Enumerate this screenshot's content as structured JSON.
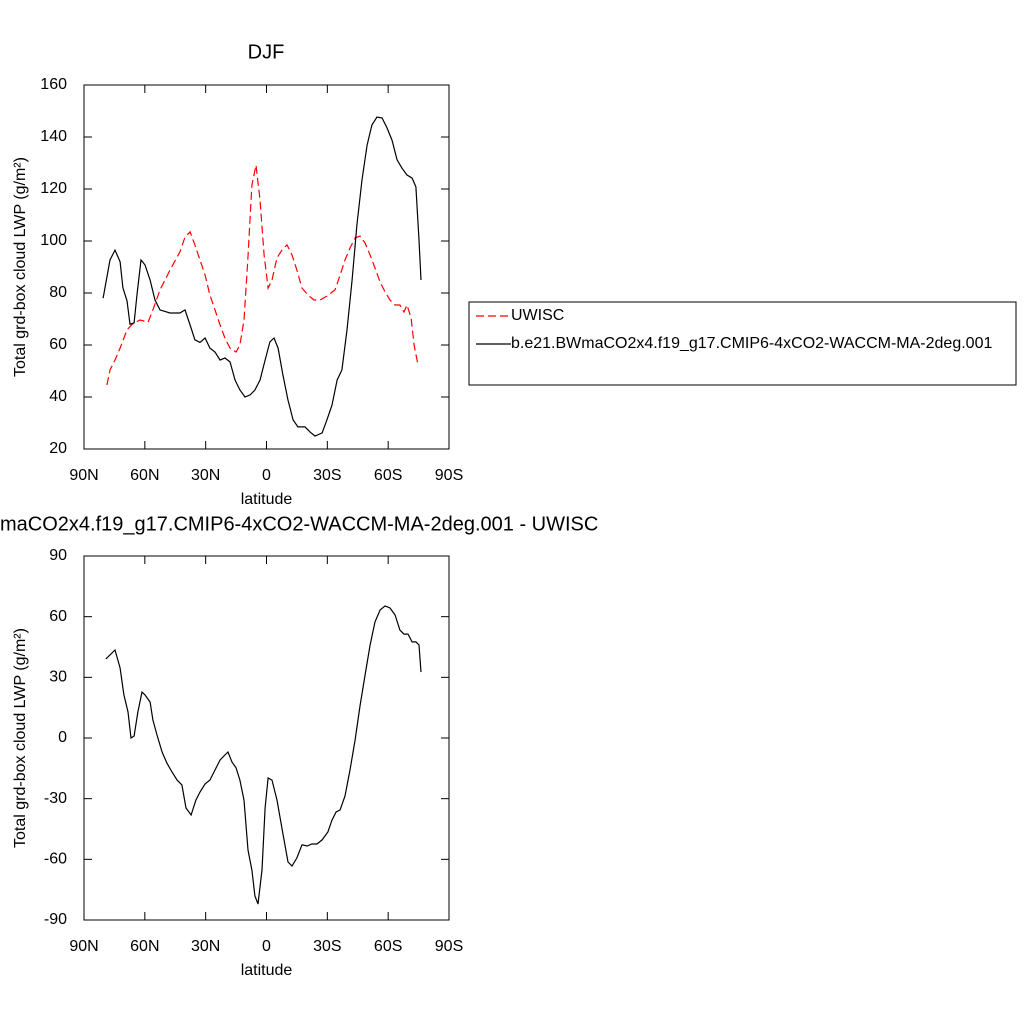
{
  "chart_data": [
    {
      "type": "line",
      "title": "DJF",
      "xlabel": "latitude",
      "ylabel": "Total grd-box cloud LWP (g/m²)",
      "xlim": [
        90,
        -90
      ],
      "xticks": [
        {
          "value": 90,
          "label": "90N"
        },
        {
          "value": 60,
          "label": "60N"
        },
        {
          "value": 30,
          "label": "30N"
        },
        0,
        {
          "value": -30,
          "label": "30S"
        },
        {
          "value": -60,
          "label": "60S"
        },
        {
          "value": -90,
          "label": "90S"
        }
      ],
      "ylim": [
        20,
        160
      ],
      "yticks": [
        20,
        40,
        60,
        80,
        100,
        120,
        140,
        160
      ],
      "legend": "right",
      "series": [
        {
          "name": "UWISC",
          "color": "#ff0000",
          "line_style": "dashed",
          "x": [
            78.7,
            77.2,
            74.7,
            72.2,
            68.8,
            66.3,
            62.4,
            58.4,
            56,
            52.5,
            47.6,
            42.7,
            40.2,
            37.7,
            35.3,
            32.8,
            30.3,
            27.9,
            25.4,
            22.9,
            20.5,
            18,
            15,
            13.1,
            11.1,
            9.2,
            7.2,
            5.2,
            3.2,
            1.2,
            -0.8,
            -2.7,
            -5.2,
            -7.6,
            -10.1,
            -12.6,
            -15,
            -17.5,
            -20.5,
            -23.4,
            -26.4,
            -29.8,
            -33.8,
            -36.3,
            -38.7,
            -41.2,
            -43.7,
            -46.1,
            -48.6,
            -51.1,
            -53.5,
            -56,
            -58.5,
            -60.9,
            -63.4,
            -65.8,
            -67.8,
            -69.3,
            -71.3,
            -72.8,
            -74.7
          ],
          "values": [
            44.6,
            50.4,
            54.2,
            58.8,
            65.8,
            68,
            69.6,
            68.8,
            73.5,
            81.2,
            88.8,
            95.8,
            101.5,
            103.5,
            98.5,
            92.7,
            86.9,
            79.2,
            73.5,
            67.7,
            62.7,
            58.8,
            57.3,
            60,
            69.6,
            92.7,
            121.5,
            129.2,
            115.8,
            94.6,
            81.9,
            85,
            93.5,
            96.5,
            98.5,
            94.6,
            88.8,
            81.9,
            79.2,
            77.3,
            77.3,
            78.8,
            81.2,
            86.9,
            92.7,
            97.3,
            101.2,
            101.9,
            99.2,
            94.6,
            89.6,
            84.2,
            80.4,
            77.3,
            75.4,
            75.4,
            72.7,
            75.4,
            70.4,
            60,
            52.3
          ]
        },
        {
          "name": "b.e21.BWmaCO2x4.f19_g17.CMIP6-4xCO2-WACCM-MA-2deg.001",
          "color": "#000000",
          "line_style": "solid",
          "x": [
            80.6,
            77.2,
            74.7,
            72.2,
            70.8,
            68.8,
            67.3,
            65.3,
            63.9,
            61.9,
            59.9,
            57.4,
            55,
            52.5,
            47.6,
            42.7,
            40.2,
            37.7,
            35.3,
            32.8,
            30.3,
            27.9,
            25.4,
            22.9,
            20.5,
            18,
            15.5,
            13.1,
            10.6,
            8.1,
            5.7,
            3.2,
            0.7,
            -1.7,
            -3.7,
            -5.7,
            -8.1,
            -10.6,
            -13.1,
            -15.5,
            -19,
            -21.5,
            -23.9,
            -27.4,
            -29.8,
            -32.3,
            -34.8,
            -37.2,
            -39.7,
            -42.2,
            -44.6,
            -47.1,
            -49.6,
            -52,
            -54.5,
            -57,
            -59.4,
            -61.9,
            -64.4,
            -66.8,
            -69.3,
            -71.8,
            -73.7,
            -75.2,
            -76.2
          ],
          "values": [
            78,
            92.7,
            96.5,
            92,
            82,
            77,
            68,
            68.5,
            79,
            92.7,
            90.8,
            85,
            77.3,
            73.5,
            72.3,
            72.3,
            73.5,
            67.7,
            62,
            61,
            62.7,
            58.8,
            57.3,
            54.2,
            55,
            53.5,
            46.5,
            42.7,
            40,
            40.8,
            42.7,
            46.5,
            54.2,
            61.2,
            62.7,
            58.8,
            48.5,
            38.8,
            31.2,
            28.5,
            28.5,
            26.5,
            25,
            26.2,
            31.2,
            36.9,
            46.5,
            50.4,
            65.8,
            85,
            106.2,
            123.5,
            136.9,
            144.6,
            147.7,
            147.3,
            143.5,
            138.8,
            131.2,
            128,
            125.4,
            124.2,
            120.8,
            100.4,
            85
          ]
        }
      ]
    },
    {
      "type": "line",
      "title": "maCO2x4.f19_g17.CMIP6-4xCO2-WACCM-MA-2deg.001 - UWISC",
      "xlabel": "latitude",
      "ylabel": "Total grd-box cloud LWP (g/m²)",
      "xlim": [
        90,
        -90
      ],
      "xticks": [
        {
          "value": 90,
          "label": "90N"
        },
        {
          "value": 60,
          "label": "60N"
        },
        {
          "value": 30,
          "label": "30N"
        },
        0,
        {
          "value": -30,
          "label": "30S"
        },
        {
          "value": -60,
          "label": "60S"
        },
        {
          "value": -90,
          "label": "90S"
        }
      ],
      "ylim": [
        -90,
        90
      ],
      "yticks": [
        -90,
        -60,
        -30,
        0,
        30,
        60,
        90
      ],
      "series": [
        {
          "color": "#000000",
          "line_style": "solid",
          "x": [
            79.2,
            74.7,
            72.2,
            70.3,
            68.3,
            66.8,
            65.3,
            63.4,
            61.4,
            59.9,
            57.4,
            56,
            54,
            51.5,
            49.1,
            46.6,
            44.1,
            41.7,
            39.7,
            37.2,
            34.8,
            32.8,
            30.3,
            27.9,
            25.4,
            22.9,
            20.5,
            19,
            17,
            15,
            13.1,
            11.1,
            9.1,
            7.2,
            5.7,
            4.2,
            2.2,
            0.7,
            -0.8,
            -2.7,
            -5.2,
            -7.6,
            -10.6,
            -12.6,
            -15,
            -17.5,
            -20,
            -22.4,
            -24.9,
            -27.4,
            -30.3,
            -32.3,
            -34.3,
            -36.3,
            -38.7,
            -41.2,
            -43.7,
            -46.1,
            -48.6,
            -51.1,
            -53.5,
            -56,
            -58.5,
            -60.9,
            -63.4,
            -65.8,
            -67.8,
            -69.8,
            -71.8,
            -73.7,
            -75.2,
            -76.2
          ],
          "values": [
            39.1,
            43.5,
            34.6,
            21.3,
            12.9,
            0,
            1,
            12.9,
            22.7,
            21.3,
            17.8,
            8.9,
            1.5,
            -6.9,
            -12.4,
            -16.8,
            -20.8,
            -23.2,
            -34.6,
            -38.1,
            -30.7,
            -26.7,
            -22.7,
            -20.8,
            -15.8,
            -10.9,
            -8.4,
            -6.9,
            -11.9,
            -14.8,
            -20.8,
            -30.7,
            -55.4,
            -65.3,
            -78.1,
            -82.1,
            -65.3,
            -34.6,
            -19.8,
            -20.8,
            -30.7,
            -44.5,
            -61.3,
            -63.3,
            -59.3,
            -52.8,
            -53.4,
            -52.4,
            -52.4,
            -50.4,
            -46.5,
            -40.6,
            -36.6,
            -35.6,
            -28.7,
            -15.8,
            -1,
            15.8,
            31.2,
            46,
            57.4,
            63.3,
            65.3,
            64.3,
            60.8,
            53.4,
            51.4,
            51.4,
            47.5,
            47.5,
            46,
            32.6
          ]
        }
      ]
    }
  ]
}
